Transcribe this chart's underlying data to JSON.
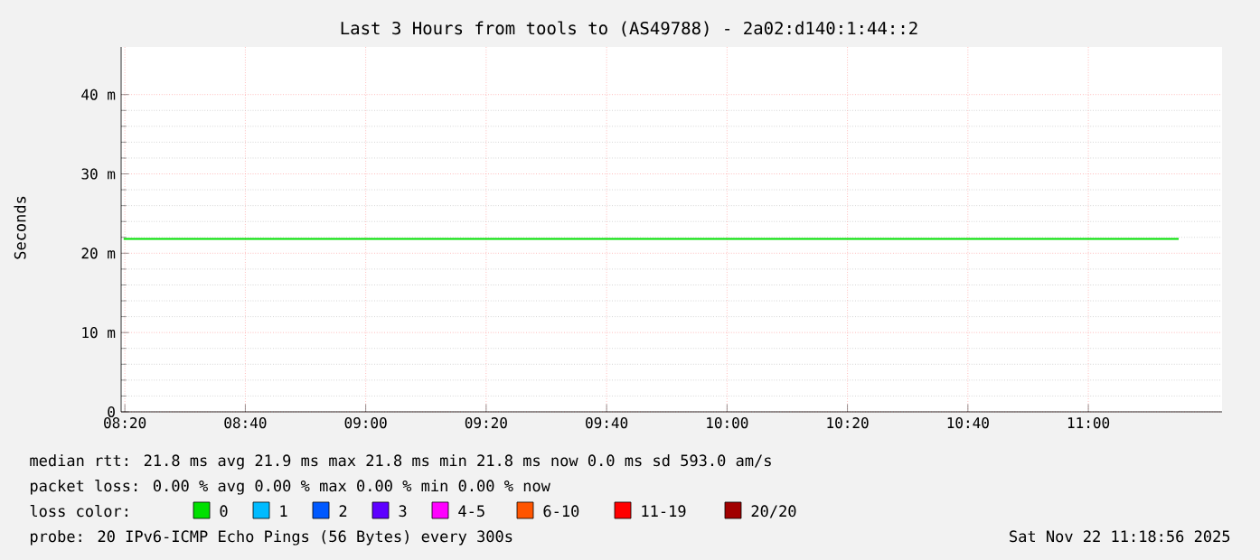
{
  "chart_data": {
    "type": "line",
    "title": "Last 3 Hours from tools to (AS49788) - 2a02:d140:1:44::2",
    "ylabel": "Seconds",
    "x": [
      8.33,
      11.25
    ],
    "series": [
      {
        "name": "0",
        "color": "#00e000",
        "values": [
          21.8,
          21.8
        ]
      },
      {
        "name": "1",
        "color": "#00bbff",
        "values": [
          null,
          null
        ]
      },
      {
        "name": "2",
        "color": "#0059ff",
        "values": [
          null,
          null
        ]
      },
      {
        "name": "3",
        "color": "#5e00ff",
        "values": [
          null,
          null
        ]
      },
      {
        "name": "4-5",
        "color": "#ff00ff",
        "values": [
          null,
          null
        ]
      },
      {
        "name": "6-10",
        "color": "#ff5500",
        "values": [
          null,
          null
        ]
      },
      {
        "name": "11-19",
        "color": "#ff0000",
        "values": [
          null,
          null
        ]
      },
      {
        "name": "20/20",
        "color": "#a10000",
        "values": [
          null,
          null
        ]
      }
    ],
    "legend_title": "loss color:",
    "legend": "bottom",
    "xlim": [
      8.323,
      11.37
    ],
    "ylim": [
      0,
      46
    ],
    "xticks": [
      {
        "value": 8.3333,
        "label": "08:20"
      },
      {
        "value": 8.6667,
        "label": "08:40"
      },
      {
        "value": 9.0,
        "label": "09:00"
      },
      {
        "value": 9.3333,
        "label": "09:20"
      },
      {
        "value": 9.6667,
        "label": "09:40"
      },
      {
        "value": 10.0,
        "label": "10:00"
      },
      {
        "value": 10.3333,
        "label": "10:20"
      },
      {
        "value": 10.6667,
        "label": "10:40"
      },
      {
        "value": 11.0,
        "label": "11:00"
      }
    ],
    "yticks": [
      {
        "value": 0,
        "label": "0"
      },
      {
        "value": 10,
        "label": "10 m"
      },
      {
        "value": 20,
        "label": "20 m"
      },
      {
        "value": 30,
        "label": "30 m"
      },
      {
        "value": 40,
        "label": "40 m"
      }
    ],
    "grid": true,
    "annotations": [
      "median rtt:  21.8 ms avg  21.9 ms max  21.8 ms min  21.8 ms now  0.0 ms sd  593.0   am/s",
      "packet loss: 0.00 % avg  0.00 % max  0.00 % min  0.00 % now",
      "probe:       20 IPv6-ICMP Echo Pings (56 Bytes) every 300s",
      "Sat Nov 22 11:18:56 2025"
    ]
  }
}
